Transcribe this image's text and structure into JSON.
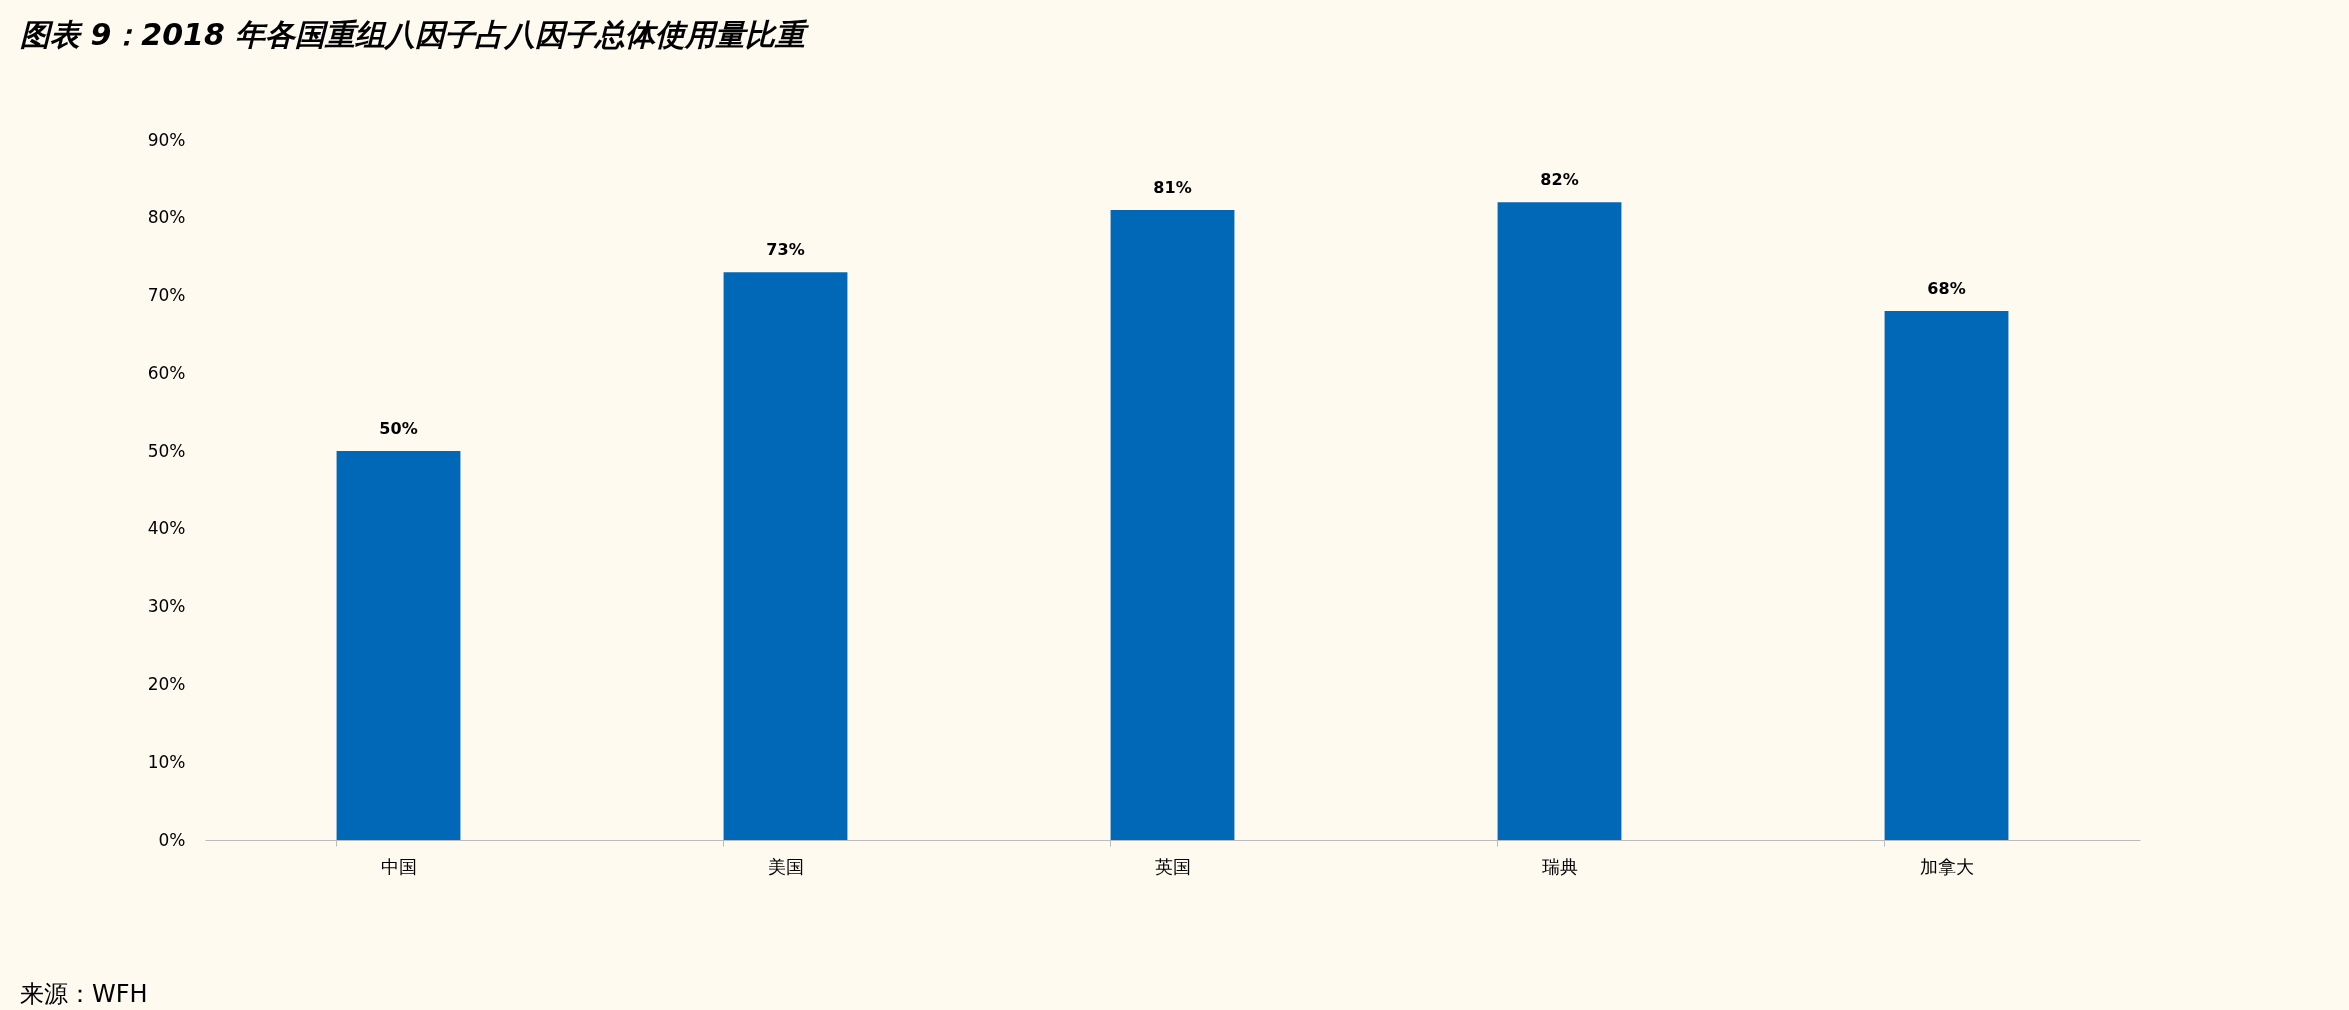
{
  "chart_data": {
    "type": "bar",
    "title": "图表 9：2018 年各国重组八因子占八因子总体使用量比重",
    "categories": [
      "中国",
      "美国",
      "英国",
      "瑞典",
      "加拿大"
    ],
    "values": [
      50,
      73,
      81,
      82,
      68
    ],
    "value_labels": [
      "50%",
      "73%",
      "81%",
      "82%",
      "68%"
    ],
    "color": "#0068b7",
    "ylim": [
      0,
      90
    ],
    "yticks": [
      {
        "value": 0,
        "label": "0%"
      },
      {
        "value": 10,
        "label": "10%"
      },
      {
        "value": 20,
        "label": "20%"
      },
      {
        "value": 30,
        "label": "30%"
      },
      {
        "value": 40,
        "label": "40%"
      },
      {
        "value": 50,
        "label": "50%"
      },
      {
        "value": 60,
        "label": "60%"
      },
      {
        "value": 70,
        "label": "70%"
      },
      {
        "value": 80,
        "label": "80%"
      },
      {
        "value": 90,
        "label": "90%"
      }
    ],
    "grid": false,
    "annotations": [
      "来源：WFH"
    ]
  }
}
